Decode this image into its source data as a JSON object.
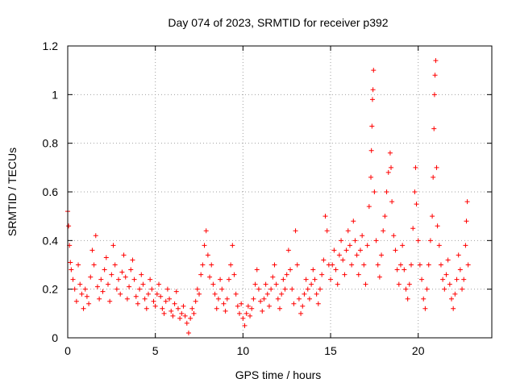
{
  "chart_data": {
    "type": "scatter",
    "title": "Day 074 of 2023, SRMTID for receiver p392",
    "xlabel": "GPS time / hours",
    "ylabel": "SRMTID / TECUs",
    "xlim": [
      0,
      24.2
    ],
    "ylim": [
      0,
      1.2
    ],
    "xticks": [
      {
        "value": 0,
        "label": "0"
      },
      {
        "value": 5,
        "label": "5"
      },
      {
        "value": 10,
        "label": "10"
      },
      {
        "value": 15,
        "label": "15"
      },
      {
        "value": 20,
        "label": "20"
      }
    ],
    "yticks": [
      {
        "value": 0,
        "label": "0"
      },
      {
        "value": 0.2,
        "label": "0.2"
      },
      {
        "value": 0.4,
        "label": "0.4"
      },
      {
        "value": 0.6,
        "label": "0.6"
      },
      {
        "value": 0.8,
        "label": "0.8"
      },
      {
        "value": 1.0,
        "label": "1"
      },
      {
        "value": 1.2,
        "label": "1.2"
      }
    ],
    "grid": true,
    "marker": "+",
    "series": [
      {
        "name": "SRMTID p392",
        "color": "#ff0000",
        "points": [
          [
            0.0,
            0.52
          ],
          [
            0.05,
            0.46
          ],
          [
            0.1,
            0.38
          ],
          [
            0.15,
            0.31
          ],
          [
            0.2,
            0.28
          ],
          [
            0.3,
            0.24
          ],
          [
            0.4,
            0.2
          ],
          [
            0.5,
            0.15
          ],
          [
            0.6,
            0.3
          ],
          [
            0.7,
            0.22
          ],
          [
            0.8,
            0.18
          ],
          [
            0.9,
            0.12
          ],
          [
            1.0,
            0.2
          ],
          [
            1.1,
            0.17
          ],
          [
            1.2,
            0.14
          ],
          [
            1.3,
            0.25
          ],
          [
            1.4,
            0.36
          ],
          [
            1.5,
            0.3
          ],
          [
            1.6,
            0.42
          ],
          [
            1.7,
            0.21
          ],
          [
            1.8,
            0.16
          ],
          [
            1.9,
            0.24
          ],
          [
            2.0,
            0.19
          ],
          [
            2.1,
            0.28
          ],
          [
            2.2,
            0.33
          ],
          [
            2.3,
            0.22
          ],
          [
            2.4,
            0.15
          ],
          [
            2.5,
            0.26
          ],
          [
            2.6,
            0.38
          ],
          [
            2.7,
            0.3
          ],
          [
            2.8,
            0.2
          ],
          [
            2.9,
            0.24
          ],
          [
            3.0,
            0.18
          ],
          [
            3.1,
            0.27
          ],
          [
            3.2,
            0.34
          ],
          [
            3.3,
            0.25
          ],
          [
            3.4,
            0.16
          ],
          [
            3.5,
            0.21
          ],
          [
            3.6,
            0.28
          ],
          [
            3.7,
            0.32
          ],
          [
            3.8,
            0.24
          ],
          [
            3.9,
            0.17
          ],
          [
            4.0,
            0.14
          ],
          [
            4.1,
            0.2
          ],
          [
            4.2,
            0.26
          ],
          [
            4.3,
            0.22
          ],
          [
            4.4,
            0.16
          ],
          [
            4.5,
            0.12
          ],
          [
            4.6,
            0.18
          ],
          [
            4.7,
            0.24
          ],
          [
            4.8,
            0.2
          ],
          [
            4.9,
            0.15
          ],
          [
            5.0,
            0.13
          ],
          [
            5.1,
            0.18
          ],
          [
            5.2,
            0.22
          ],
          [
            5.3,
            0.17
          ],
          [
            5.4,
            0.12
          ],
          [
            5.5,
            0.1
          ],
          [
            5.6,
            0.15
          ],
          [
            5.7,
            0.2
          ],
          [
            5.8,
            0.16
          ],
          [
            5.9,
            0.11
          ],
          [
            6.0,
            0.09
          ],
          [
            6.1,
            0.14
          ],
          [
            6.2,
            0.19
          ],
          [
            6.3,
            0.12
          ],
          [
            6.4,
            0.08
          ],
          [
            6.5,
            0.1
          ],
          [
            6.6,
            0.13
          ],
          [
            6.7,
            0.09
          ],
          [
            6.8,
            0.06
          ],
          [
            6.9,
            0.02
          ],
          [
            7.0,
            0.08
          ],
          [
            7.1,
            0.12
          ],
          [
            7.2,
            0.1
          ],
          [
            7.3,
            0.15
          ],
          [
            7.4,
            0.2
          ],
          [
            7.5,
            0.18
          ],
          [
            7.6,
            0.26
          ],
          [
            7.7,
            0.3
          ],
          [
            7.8,
            0.38
          ],
          [
            7.9,
            0.44
          ],
          [
            8.0,
            0.34
          ],
          [
            8.1,
            0.25
          ],
          [
            8.2,
            0.3
          ],
          [
            8.3,
            0.22
          ],
          [
            8.4,
            0.18
          ],
          [
            8.5,
            0.12
          ],
          [
            8.6,
            0.16
          ],
          [
            8.7,
            0.24
          ],
          [
            8.8,
            0.2
          ],
          [
            8.9,
            0.14
          ],
          [
            9.0,
            0.11
          ],
          [
            9.1,
            0.16
          ],
          [
            9.2,
            0.24
          ],
          [
            9.3,
            0.3
          ],
          [
            9.4,
            0.38
          ],
          [
            9.5,
            0.26
          ],
          [
            9.6,
            0.18
          ],
          [
            9.7,
            0.13
          ],
          [
            9.8,
            0.1
          ],
          [
            9.9,
            0.14
          ],
          [
            10.0,
            0.08
          ],
          [
            10.1,
            0.05
          ],
          [
            10.2,
            0.1
          ],
          [
            10.3,
            0.13
          ],
          [
            10.4,
            0.09
          ],
          [
            10.5,
            0.12
          ],
          [
            10.6,
            0.16
          ],
          [
            10.7,
            0.22
          ],
          [
            10.8,
            0.28
          ],
          [
            10.9,
            0.2
          ],
          [
            11.0,
            0.15
          ],
          [
            11.1,
            0.11
          ],
          [
            11.2,
            0.16
          ],
          [
            11.3,
            0.22
          ],
          [
            11.4,
            0.18
          ],
          [
            11.5,
            0.13
          ],
          [
            11.6,
            0.2
          ],
          [
            11.7,
            0.25
          ],
          [
            11.8,
            0.3
          ],
          [
            11.9,
            0.22
          ],
          [
            12.0,
            0.16
          ],
          [
            12.1,
            0.12
          ],
          [
            12.2,
            0.18
          ],
          [
            12.3,
            0.24
          ],
          [
            12.4,
            0.2
          ],
          [
            12.5,
            0.26
          ],
          [
            12.6,
            0.36
          ],
          [
            12.7,
            0.28
          ],
          [
            12.8,
            0.2
          ],
          [
            12.9,
            0.14
          ],
          [
            13.0,
            0.44
          ],
          [
            13.1,
            0.3
          ],
          [
            13.2,
            0.16
          ],
          [
            13.3,
            0.1
          ],
          [
            13.4,
            0.13
          ],
          [
            13.5,
            0.18
          ],
          [
            13.6,
            0.24
          ],
          [
            13.7,
            0.2
          ],
          [
            13.8,
            0.16
          ],
          [
            13.9,
            0.22
          ],
          [
            14.0,
            0.28
          ],
          [
            14.1,
            0.24
          ],
          [
            14.2,
            0.18
          ],
          [
            14.3,
            0.14
          ],
          [
            14.4,
            0.2
          ],
          [
            14.5,
            0.26
          ],
          [
            14.6,
            0.32
          ],
          [
            14.7,
            0.5
          ],
          [
            14.8,
            0.44
          ],
          [
            14.9,
            0.3
          ],
          [
            15.0,
            0.24
          ],
          [
            15.1,
            0.3
          ],
          [
            15.2,
            0.36
          ],
          [
            15.3,
            0.28
          ],
          [
            15.4,
            0.22
          ],
          [
            15.5,
            0.34
          ],
          [
            15.6,
            0.4
          ],
          [
            15.7,
            0.32
          ],
          [
            15.8,
            0.26
          ],
          [
            15.9,
            0.36
          ],
          [
            16.0,
            0.44
          ],
          [
            16.1,
            0.38
          ],
          [
            16.2,
            0.3
          ],
          [
            16.3,
            0.48
          ],
          [
            16.4,
            0.4
          ],
          [
            16.5,
            0.34
          ],
          [
            16.6,
            0.26
          ],
          [
            16.7,
            0.36
          ],
          [
            16.8,
            0.42
          ],
          [
            16.9,
            0.3
          ],
          [
            17.0,
            0.22
          ],
          [
            17.1,
            0.38
          ],
          [
            17.2,
            0.54
          ],
          [
            17.3,
            0.66
          ],
          [
            17.33,
            0.77
          ],
          [
            17.36,
            0.87
          ],
          [
            17.39,
            0.98
          ],
          [
            17.42,
            1.02
          ],
          [
            17.45,
            1.1
          ],
          [
            17.5,
            0.6
          ],
          [
            17.6,
            0.4
          ],
          [
            17.7,
            0.3
          ],
          [
            17.8,
            0.25
          ],
          [
            17.9,
            0.34
          ],
          [
            18.0,
            0.44
          ],
          [
            18.1,
            0.5
          ],
          [
            18.2,
            0.6
          ],
          [
            18.3,
            0.68
          ],
          [
            18.4,
            0.76
          ],
          [
            18.45,
            0.7
          ],
          [
            18.5,
            0.56
          ],
          [
            18.6,
            0.42
          ],
          [
            18.7,
            0.36
          ],
          [
            18.8,
            0.28
          ],
          [
            18.9,
            0.22
          ],
          [
            19.0,
            0.3
          ],
          [
            19.1,
            0.38
          ],
          [
            19.2,
            0.28
          ],
          [
            19.3,
            0.2
          ],
          [
            19.4,
            0.16
          ],
          [
            19.5,
            0.22
          ],
          [
            19.6,
            0.3
          ],
          [
            19.7,
            0.45
          ],
          [
            19.8,
            0.6
          ],
          [
            19.85,
            0.7
          ],
          [
            19.9,
            0.55
          ],
          [
            20.0,
            0.4
          ],
          [
            20.1,
            0.3
          ],
          [
            20.2,
            0.24
          ],
          [
            20.3,
            0.16
          ],
          [
            20.4,
            0.12
          ],
          [
            20.5,
            0.2
          ],
          [
            20.6,
            0.3
          ],
          [
            20.7,
            0.4
          ],
          [
            20.8,
            0.5
          ],
          [
            20.85,
            0.66
          ],
          [
            20.9,
            0.86
          ],
          [
            20.93,
            1.0
          ],
          [
            20.96,
            1.08
          ],
          [
            21.0,
            1.14
          ],
          [
            21.05,
            0.7
          ],
          [
            21.1,
            0.46
          ],
          [
            21.2,
            0.38
          ],
          [
            21.3,
            0.3
          ],
          [
            21.4,
            0.24
          ],
          [
            21.5,
            0.2
          ],
          [
            21.6,
            0.26
          ],
          [
            21.7,
            0.32
          ],
          [
            21.8,
            0.22
          ],
          [
            21.9,
            0.16
          ],
          [
            22.0,
            0.12
          ],
          [
            22.1,
            0.18
          ],
          [
            22.2,
            0.24
          ],
          [
            22.3,
            0.34
          ],
          [
            22.4,
            0.28
          ],
          [
            22.5,
            0.2
          ],
          [
            22.6,
            0.24
          ],
          [
            22.7,
            0.38
          ],
          [
            22.75,
            0.48
          ],
          [
            22.8,
            0.56
          ],
          [
            22.85,
            0.3
          ]
        ]
      }
    ]
  }
}
